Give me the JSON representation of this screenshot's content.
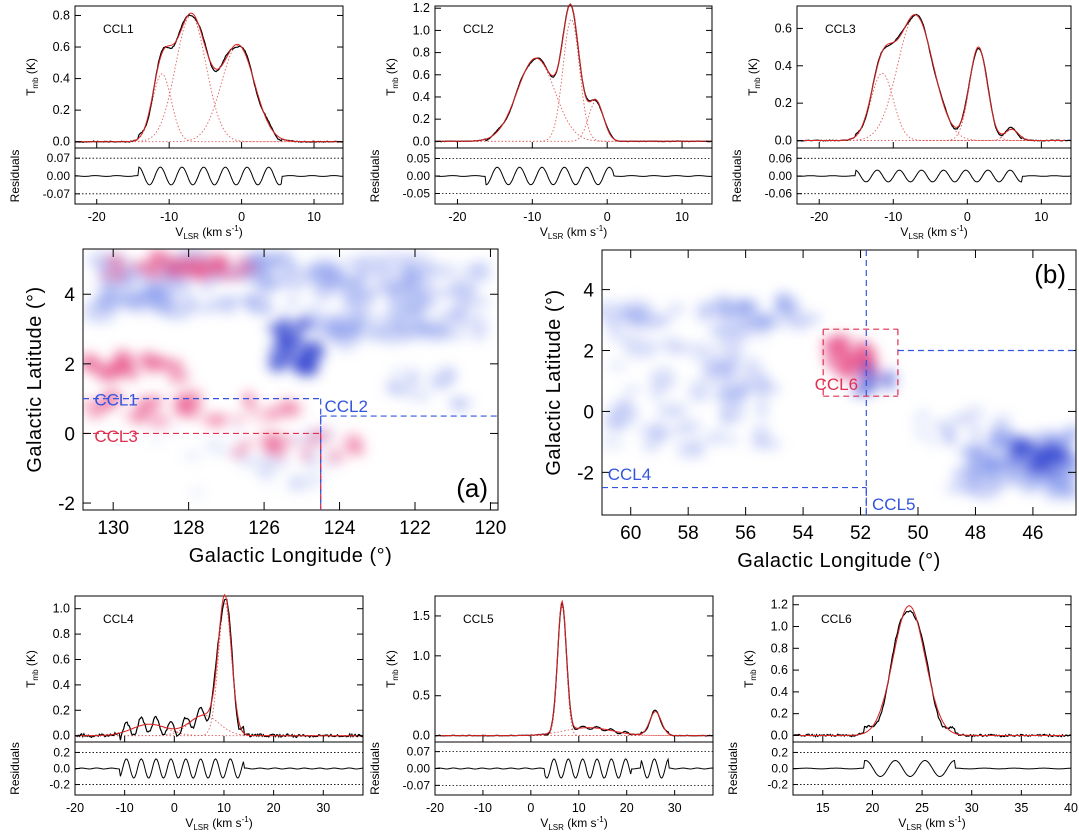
{
  "colors": {
    "fit": "#dd2222",
    "comp": "#e06060",
    "blue": "#3355dd",
    "red": "#e03050",
    "cloud_blue": "#7f93ea",
    "cloud_red": "#e84f86"
  },
  "spectra": {
    "ylabel": "Tmb (K)",
    "ylabel_main": "T",
    "ylabel_sub": "mb",
    "ylabel_unit": "(K)",
    "res_label": "Residuals",
    "xlabel_main": "V",
    "xlabel_sub": "LSR",
    "xlabel_unit": "(km s",
    "xlabel_exp": "-1",
    "xlabel_close": ")"
  },
  "chart_data": [
    {
      "id": "CCL1",
      "type": "line",
      "title": "CCL1",
      "xlim": [
        -23,
        14
      ],
      "ylim": [
        -0.04,
        0.86
      ],
      "xticks": [
        "-20",
        "-10",
        "0",
        "10"
      ],
      "yticks": [
        "0.0",
        "0.2",
        "0.4",
        "0.6",
        "0.8"
      ],
      "res_ylim": [
        -0.11,
        0.11
      ],
      "res_ticks": [
        "0.07",
        "0.00",
        "-0.07"
      ],
      "components": [
        {
          "amp": 0.43,
          "center": -11.0,
          "sigma": 1.3
        },
        {
          "amp": 0.8,
          "center": -7.0,
          "sigma": 2.1
        },
        {
          "amp": 0.61,
          "center": -0.5,
          "sigma": 2.3
        }
      ],
      "residual_amp": 0.035
    },
    {
      "id": "CCL2",
      "type": "line",
      "title": "CCL2",
      "xlim": [
        -23,
        14
      ],
      "ylim": [
        -0.06,
        1.22
      ],
      "xticks": [
        "-20",
        "-10",
        "0",
        "10"
      ],
      "yticks": [
        "0.0",
        "0.2",
        "0.4",
        "0.6",
        "0.8",
        "1.0",
        "1.2"
      ],
      "res_ylim": [
        -0.08,
        0.08
      ],
      "res_ticks": [
        "0.05",
        "0.00",
        "-0.05"
      ],
      "components": [
        {
          "amp": 0.75,
          "center": -9.5,
          "sigma": 2.5
        },
        {
          "amp": 1.1,
          "center": -4.8,
          "sigma": 1.1
        },
        {
          "amp": 0.36,
          "center": -1.5,
          "sigma": 1.0
        }
      ],
      "residual_amp": 0.025
    },
    {
      "id": "CCL3",
      "type": "line",
      "title": "CCL3",
      "xlim": [
        -23,
        14
      ],
      "ylim": [
        -0.04,
        0.72
      ],
      "xticks": [
        "-20",
        "-10",
        "0",
        "10"
      ],
      "yticks": [
        "0.0",
        "0.2",
        "0.4",
        "0.6"
      ],
      "res_ylim": [
        -0.095,
        0.095
      ],
      "res_ticks": [
        "0.06",
        "0.00",
        "-0.06"
      ],
      "components": [
        {
          "amp": 0.36,
          "center": -11.5,
          "sigma": 1.5
        },
        {
          "amp": 0.67,
          "center": -7.0,
          "sigma": 2.4
        },
        {
          "amp": 0.5,
          "center": 1.5,
          "sigma": 1.2
        },
        {
          "amp": 0.06,
          "center": 6.0,
          "sigma": 0.9
        }
      ],
      "residual_amp": 0.02
    },
    {
      "id": "CCL4",
      "type": "line",
      "title": "CCL4",
      "xlim": [
        -20,
        38
      ],
      "ylim": [
        -0.05,
        1.1
      ],
      "xticks": [
        "-20",
        "-10",
        "0",
        "10",
        "20",
        "30"
      ],
      "yticks": [
        "0.0",
        "0.2",
        "0.4",
        "0.6",
        "0.8",
        "1.0"
      ],
      "res_ylim": [
        -0.33,
        0.33
      ],
      "res_ticks": [
        "0.2",
        "0.0",
        "-0.2"
      ],
      "components": [
        {
          "amp": 0.09,
          "center": -5.0,
          "sigma": 3.5
        },
        {
          "amp": 0.16,
          "center": 6.0,
          "sigma": 3.0
        },
        {
          "amp": 1.05,
          "center": 10.2,
          "sigma": 1.3
        }
      ],
      "residual_amp": 0.12
    },
    {
      "id": "CCL5",
      "type": "line",
      "title": "CCL5",
      "xlim": [
        -20,
        38
      ],
      "ylim": [
        -0.08,
        1.75
      ],
      "xticks": [
        "-20",
        "-10",
        "0",
        "10",
        "20",
        "30"
      ],
      "yticks": [
        "0.0",
        "0.5",
        "1.0",
        "1.5"
      ],
      "res_ylim": [
        -0.11,
        0.11
      ],
      "res_ticks": [
        "0.07",
        "0.00",
        "-0.07"
      ],
      "components": [
        {
          "amp": 1.63,
          "center": 6.5,
          "sigma": 0.9
        },
        {
          "amp": 0.1,
          "center": 12.0,
          "sigma": 5.0
        },
        {
          "amp": 0.3,
          "center": 26.0,
          "sigma": 1.2
        }
      ],
      "residual_amp": 0.04
    },
    {
      "id": "CCL6",
      "type": "line",
      "title": "CCL6",
      "xlim": [
        12,
        40
      ],
      "ylim": [
        -0.06,
        1.28
      ],
      "xticks": [
        "15",
        "20",
        "25",
        "30",
        "35",
        "40"
      ],
      "yticks": [
        "0.0",
        "0.2",
        "0.4",
        "0.6",
        "0.8",
        "1.0",
        "1.2"
      ],
      "res_ylim": [
        -0.33,
        0.33
      ],
      "res_ticks": [
        "0.2",
        "0.0",
        "-0.2"
      ],
      "components": [
        {
          "amp": 1.19,
          "center": 23.7,
          "sigma": 1.6
        }
      ],
      "residual_amp": 0.1
    }
  ],
  "map_a": {
    "panel_label": "(a)",
    "xlabel": "Galactic Longitude (°)",
    "ylabel": "Galactic Latitude (°)",
    "xlim": [
      130.8,
      119.8
    ],
    "ylim": [
      -2.2,
      5.3
    ],
    "xticks": [
      130,
      128,
      126,
      124,
      122,
      120
    ],
    "yticks": [
      -2,
      0,
      2,
      4
    ],
    "xtick_labels": [
      "130",
      "128",
      "126",
      "124",
      "122",
      "120"
    ],
    "ytick_labels": [
      "-2",
      "0",
      "2",
      "4"
    ],
    "regions": [
      {
        "label": "CCL1",
        "color": "blue",
        "l_min": 124.5,
        "b_max": 1.0
      },
      {
        "label": "CCL2",
        "color": "blue",
        "l_max": 124.5,
        "b_max": 0.5
      },
      {
        "label": "CCL3",
        "color": "red",
        "l_min": 124.5,
        "b_max": 0.0
      }
    ]
  },
  "map_b": {
    "panel_label": "(b)",
    "xlabel": "Galactic Longitude (°)",
    "ylabel": "Galactic Latitude (°)",
    "xlim": [
      61,
      44.5
    ],
    "ylim": [
      -3.4,
      5.3
    ],
    "xticks": [
      60,
      58,
      56,
      54,
      52,
      50,
      48,
      46
    ],
    "yticks": [
      -2,
      0,
      2,
      4
    ],
    "xtick_labels": [
      "60",
      "58",
      "56",
      "54",
      "52",
      "50",
      "48",
      "46"
    ],
    "ytick_labels": [
      "-2",
      "0",
      "2",
      "4"
    ],
    "regions": [
      {
        "label": "CCL4",
        "color": "blue",
        "l_min": 51.8,
        "b_max": -2.5
      },
      {
        "label": "CCL5",
        "color": "blue",
        "l_max": 51.8
      },
      {
        "label": "CCL6",
        "color": "red",
        "l_min": 50.7,
        "l_max": 53.3,
        "b_min": 0.5,
        "b_max": 2.7
      }
    ]
  }
}
